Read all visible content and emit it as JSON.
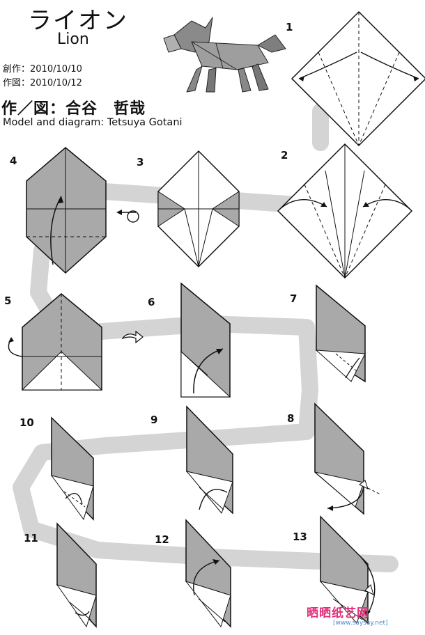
{
  "header": {
    "title_jp": "ライオン",
    "title_en": "Lion",
    "created": "創作：2010/10/10",
    "diagrammed": "作図：2010/10/12",
    "author_jp": "作／図：合谷　哲哉",
    "author_en": "Model and diagram: Tetsuya Gotani"
  },
  "steps": [
    "1",
    "2",
    "3",
    "4",
    "5",
    "6",
    "7",
    "8",
    "9",
    "10",
    "11",
    "12",
    "13"
  ],
  "watermark": {
    "text": "晒晒纸艺网",
    "url": "[www.saysay.net]"
  },
  "colors": {
    "paper_back": "#a9a9a9",
    "paper_front": "#ffffff",
    "path": "#d4d4d4",
    "line": "#1a1a1a"
  }
}
